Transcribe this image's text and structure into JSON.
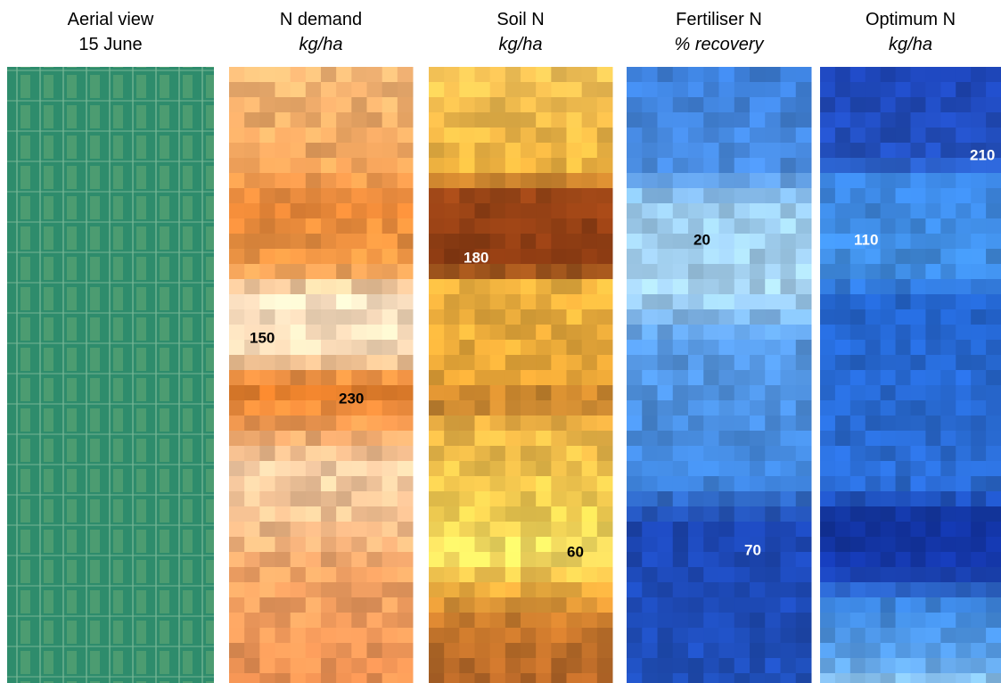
{
  "panels": [
    {
      "title": "Aerial view",
      "subtitle": "15 June"
    },
    {
      "title": "N demand",
      "subtitle": "kg/ha",
      "labels": [
        "150",
        "230"
      ]
    },
    {
      "title": "Soil N",
      "subtitle": "kg/ha",
      "labels": [
        "180",
        "60"
      ]
    },
    {
      "title": "Fertiliser N",
      "subtitle": "% recovery",
      "labels": [
        "20",
        "70"
      ]
    },
    {
      "title": "Optimum N",
      "subtitle": "kg/ha",
      "labels": [
        "110",
        "210"
      ]
    }
  ]
}
